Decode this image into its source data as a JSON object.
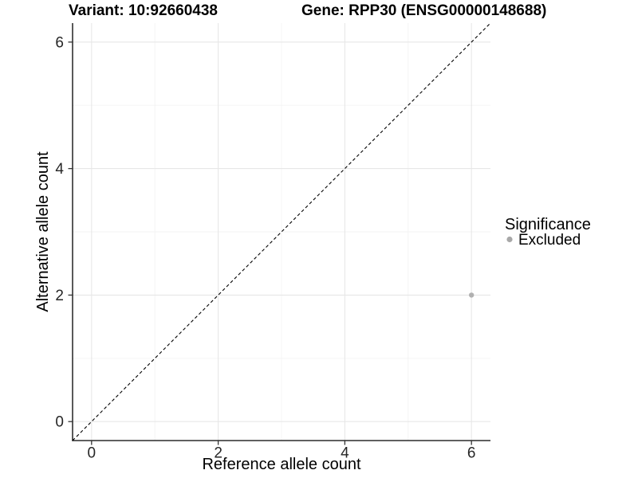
{
  "header": {
    "title_left": "Variant: 10:92660438",
    "title_right": "Gene: RPP30 (ENSG00000148688)"
  },
  "chart_data": {
    "type": "scatter",
    "title": "Variant: 10:92660438 — Gene: RPP30 (ENSG00000148688)",
    "xlabel": "Reference allele count",
    "ylabel": "Alternative allele count",
    "xlim": [
      -0.3,
      6.3
    ],
    "ylim": [
      -0.3,
      6.3
    ],
    "xticks": [
      0,
      2,
      4,
      6
    ],
    "yticks": [
      0,
      2,
      4,
      6
    ],
    "minor_xticks": [
      1,
      3,
      5
    ],
    "minor_yticks": [
      1,
      3,
      5
    ],
    "grid": true,
    "abline": {
      "slope": 1,
      "intercept": 0,
      "style": "dashed",
      "color": "#000000"
    },
    "series": [
      {
        "name": "Excluded",
        "color": "#b0b0b0",
        "points": [
          {
            "x": 6,
            "y": 2
          }
        ]
      }
    ],
    "legend": {
      "title": "Significance",
      "position": "right",
      "items": [
        {
          "label": "Excluded",
          "color": "#a8a8a8"
        }
      ]
    }
  },
  "colors": {
    "background": "#ffffff",
    "grid_major": "#e7e7e7",
    "grid_minor": "#f3f3f3",
    "axis_line": "#000000",
    "tick_mark": "#333333",
    "tick_label": "#262626"
  }
}
